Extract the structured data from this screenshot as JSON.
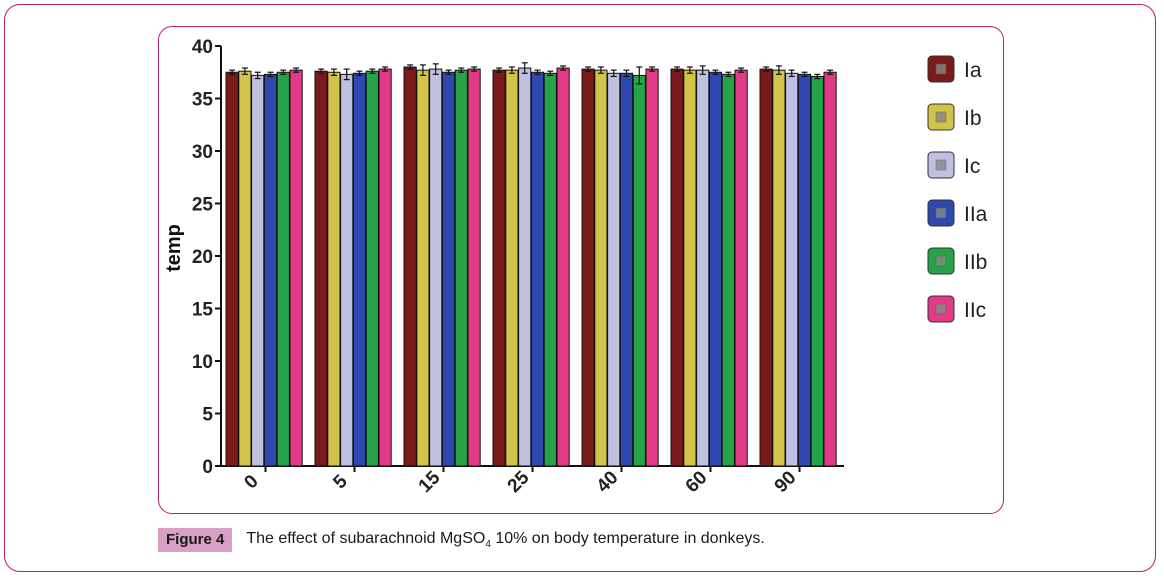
{
  "figure": {
    "label": "Figure 4",
    "caption_before": "The effect of subarachnoid MgSO",
    "caption_sub": "4",
    "caption_after": " 10% on body temperature in donkeys."
  },
  "chart_data": {
    "type": "bar",
    "ylabel": "temp",
    "xlabel": "",
    "ylim": [
      0,
      40
    ],
    "yticks": [
      0,
      5,
      10,
      15,
      20,
      25,
      30,
      35,
      40
    ],
    "categories": [
      "0",
      "5",
      "15",
      "25",
      "40",
      "60",
      "90"
    ],
    "legend_position": "right",
    "series": [
      {
        "name": "Ia",
        "color": "#7a1a1a",
        "values": [
          37.5,
          37.6,
          38.0,
          37.7,
          37.8,
          37.8,
          37.8
        ],
        "errors": [
          0.2,
          0.2,
          0.2,
          0.2,
          0.2,
          0.2,
          0.2
        ]
      },
      {
        "name": "Ib",
        "color": "#d2c44a",
        "values": [
          37.6,
          37.5,
          37.7,
          37.7,
          37.7,
          37.7,
          37.7
        ],
        "errors": [
          0.3,
          0.3,
          0.5,
          0.3,
          0.3,
          0.3,
          0.4
        ]
      },
      {
        "name": "Ic",
        "color": "#c0c0e0",
        "values": [
          37.2,
          37.3,
          37.8,
          37.9,
          37.4,
          37.7,
          37.4
        ],
        "errors": [
          0.3,
          0.5,
          0.5,
          0.5,
          0.3,
          0.4,
          0.3
        ]
      },
      {
        "name": "IIa",
        "color": "#2e48b0",
        "values": [
          37.3,
          37.4,
          37.5,
          37.5,
          37.4,
          37.5,
          37.3
        ],
        "errors": [
          0.2,
          0.2,
          0.2,
          0.2,
          0.3,
          0.2,
          0.2
        ]
      },
      {
        "name": "IIb",
        "color": "#26a348",
        "values": [
          37.5,
          37.6,
          37.7,
          37.4,
          37.2,
          37.3,
          37.1
        ],
        "errors": [
          0.2,
          0.2,
          0.2,
          0.2,
          0.8,
          0.2,
          0.2
        ]
      },
      {
        "name": "IIc",
        "color": "#e23a86",
        "values": [
          37.7,
          37.8,
          37.8,
          37.9,
          37.8,
          37.7,
          37.5
        ],
        "errors": [
          0.2,
          0.2,
          0.2,
          0.2,
          0.2,
          0.2,
          0.2
        ]
      }
    ]
  }
}
